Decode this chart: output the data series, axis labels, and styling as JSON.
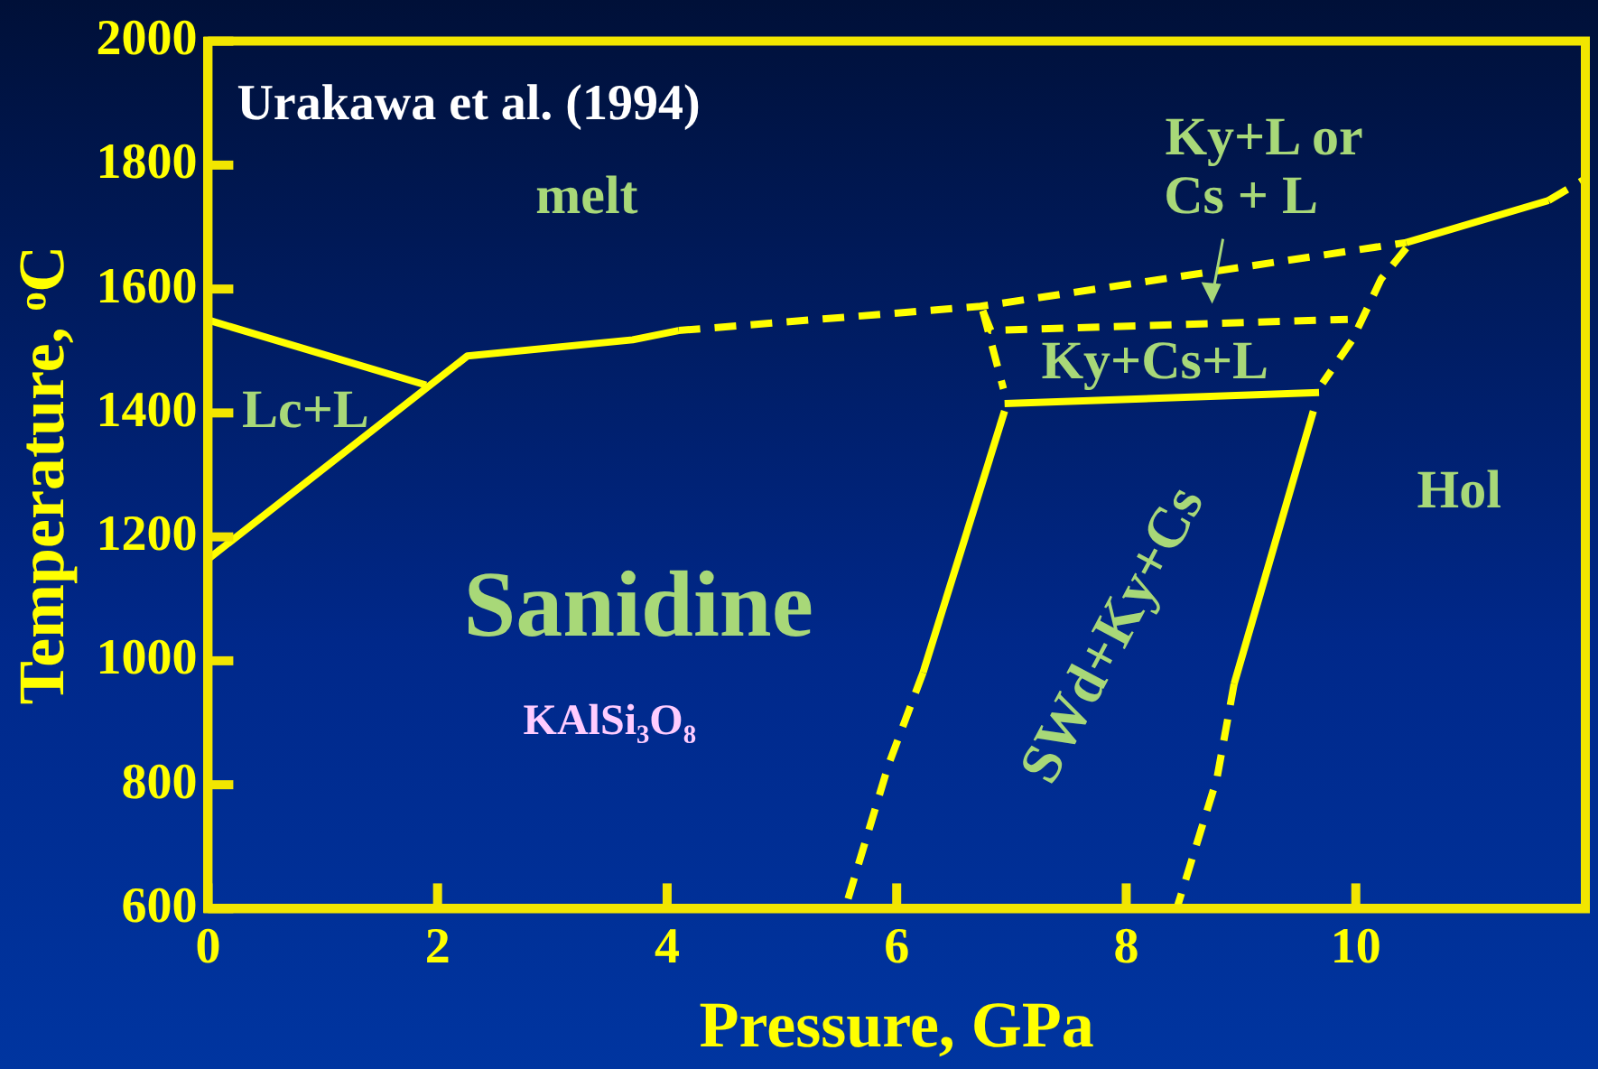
{
  "chart_data": {
    "type": "line",
    "title": "Urakawa et al. (1994)",
    "xlabel": "Pressure, GPa",
    "ylabel": "Temperature, ᵒC",
    "xlim": [
      0,
      12
    ],
    "xticks": [
      0,
      2,
      4,
      6,
      8,
      10
    ],
    "ylim": [
      600,
      2000
    ],
    "yticks": [
      600,
      800,
      1000,
      1200,
      1400,
      1600,
      1800,
      2000
    ],
    "grid": false,
    "legend": false,
    "marker": "none",
    "series": [
      {
        "color": "#ffff00",
        "line_style": "solid",
        "x": [
          0,
          1.9
        ],
        "values": [
          1550,
          1445
        ]
      },
      {
        "color": "#ffff00",
        "line_style": "solid",
        "x": [
          0,
          2.26,
          3.7,
          4.1
        ],
        "values": [
          1164,
          1492,
          1518,
          1533
        ]
      },
      {
        "color": "#ffff00",
        "line_style": "dashed",
        "x": [
          4.1,
          6.73,
          10.44
        ],
        "values": [
          1533,
          1572,
          1675
        ]
      },
      {
        "color": "#ffff00",
        "line_style": "solid",
        "x": [
          10.44,
          11.68
        ],
        "values": [
          1675,
          1743
        ]
      },
      {
        "color": "#ffff00",
        "line_style": "dashed",
        "x": [
          11.68,
          12
        ],
        "values": [
          1743,
          1778
        ]
      },
      {
        "color": "#ffff00",
        "line_style": "dashed",
        "x": [
          6.75,
          6.82,
          9.93
        ],
        "values": [
          1565,
          1533,
          1551
        ]
      },
      {
        "color": "#ffff00",
        "line_style": "dashed",
        "x": [
          6.75,
          6.93
        ],
        "values": [
          1565,
          1439
        ]
      },
      {
        "color": "#ffff00",
        "line_style": "dashed",
        "x": [
          10.44,
          10.22,
          9.97,
          9.71
        ],
        "values": [
          1666,
          1616,
          1518,
          1448
        ]
      },
      {
        "color": "#ffff00",
        "line_style": "solid",
        "x": [
          6.94,
          9.68
        ],
        "values": [
          1415,
          1433
        ]
      },
      {
        "color": "#ffff00",
        "line_style": "solid",
        "x": [
          6.94,
          6.23
        ],
        "values": [
          1403,
          981
        ]
      },
      {
        "color": "#ffff00",
        "line_style": "dashed",
        "x": [
          6.23,
          5.93,
          5.57
        ],
        "values": [
          981,
          833,
          612
        ]
      },
      {
        "color": "#ffff00",
        "line_style": "solid",
        "x": [
          9.63,
          8.94
        ],
        "values": [
          1403,
          963
        ]
      },
      {
        "color": "#ffff00",
        "line_style": "dashed",
        "x": [
          8.94,
          8.79,
          8.45
        ],
        "values": [
          963,
          810,
          606
        ]
      }
    ],
    "annotations": [
      "melt",
      "Lc+L",
      "Ky+L or",
      "Cs + L",
      "Ky+Cs+L",
      "Hol",
      "Sanidine",
      "KAlSi₃O₈",
      "SWd+Ky+Cs"
    ]
  }
}
